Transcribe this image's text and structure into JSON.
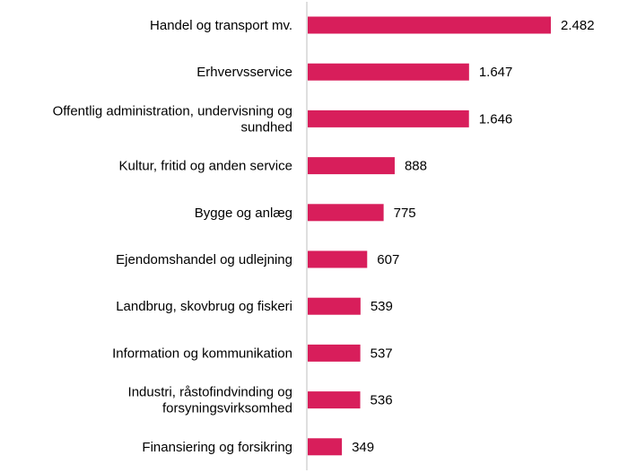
{
  "chart_data": {
    "type": "bar",
    "orientation": "horizontal",
    "title": "",
    "xlabel": "",
    "ylabel": "",
    "bar_color": "#D81E5B",
    "axis_color": "#BFBFBF",
    "grid": false,
    "legend": "none",
    "xlim": [
      0,
      2482
    ],
    "categories": [
      [
        "Handel og transport mv."
      ],
      [
        "Erhvervsservice"
      ],
      [
        "Offentlig administration, undervisning og",
        "sundhed"
      ],
      [
        "Kultur, fritid og anden service"
      ],
      [
        "Bygge og anlæg"
      ],
      [
        "Ejendomshandel og udlejning"
      ],
      [
        "Landbrug, skovbrug og fiskeri"
      ],
      [
        "Information og kommunikation"
      ],
      [
        "Industri, råstofindvinding og",
        "forsyningsvirksomhed"
      ],
      [
        "Finansiering og forsikring"
      ]
    ],
    "values": [
      2482,
      1647,
      1646,
      888,
      775,
      607,
      539,
      537,
      536,
      349
    ],
    "value_labels": [
      "2.482",
      "1.647",
      "1.646",
      "888",
      "775",
      "607",
      "539",
      "537",
      "536",
      "349"
    ]
  }
}
